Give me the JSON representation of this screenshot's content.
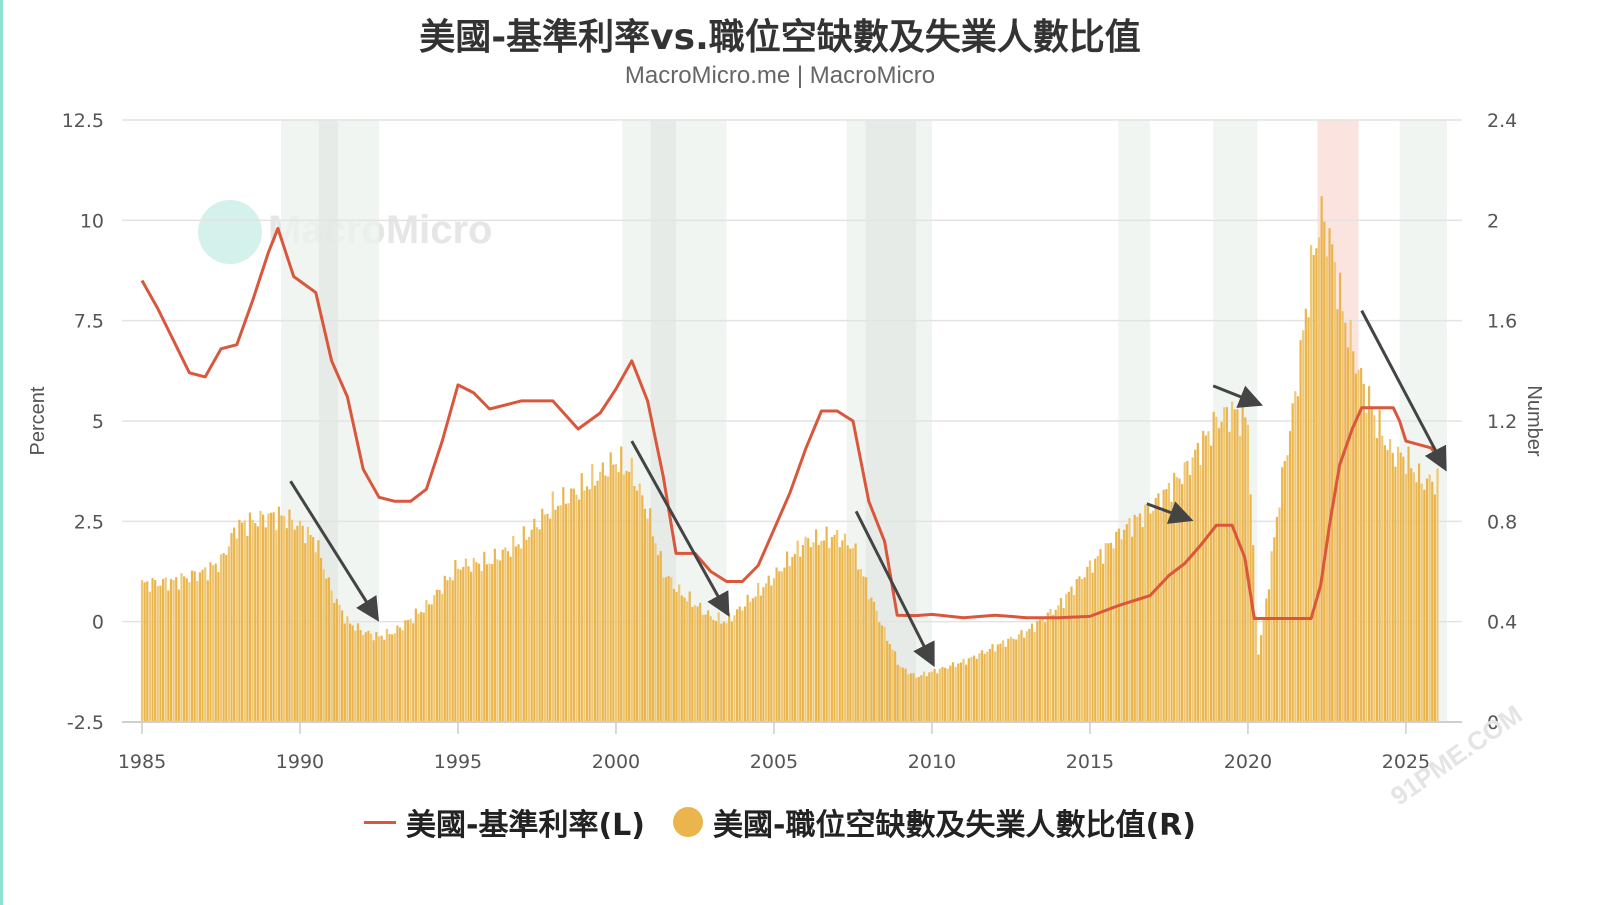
{
  "chart": {
    "title": "美國-基準利率vs.職位空缺數及失業人數比值",
    "subtitle": "MacroMicro.me | MacroMicro",
    "watermark": "MacroMicro",
    "corner_watermark": "91PME.COM",
    "left_axis_title": "Percent",
    "right_axis_title": "Number",
    "legend": [
      {
        "label": "美國-基準利率(L)",
        "color": "#d9573c",
        "symbol": "line"
      },
      {
        "label": "美國-職位空缺數及失業人數比值(R)",
        "color": "#ebb54d",
        "symbol": "circle"
      }
    ]
  },
  "chart_data": {
    "type": "line+bar",
    "title": "美國-基準利率vs.職位空缺數及失業人數比值",
    "subtitle": "MacroMicro.me | MacroMicro",
    "xlabel": "",
    "ylabel_left": "Percent",
    "ylabel_right": "Number",
    "ylim_left": [
      -2.5,
      12.5
    ],
    "ylim_right": [
      0,
      2.4
    ],
    "x_ticks": [
      "1985",
      "1990",
      "1995",
      "2000",
      "2005",
      "2010",
      "2015",
      "2020",
      "2025"
    ],
    "y_ticks_left": [
      "12.5",
      "10",
      "7.5",
      "5",
      "2.5",
      "0",
      "-2.5"
    ],
    "y_ticks_right": [
      "2.4",
      "2",
      "1.6",
      "1.2",
      "0.8",
      "0.4",
      "0"
    ],
    "grid": true,
    "legend_position": "bottom",
    "recession_shading": [
      [
        1989.4,
        1992.5
      ],
      [
        2000.2,
        2003.5
      ],
      [
        2007.3,
        2010.0
      ],
      [
        2015.9,
        2016.9
      ],
      [
        2018.9,
        2020.3
      ],
      [
        2024.8,
        2026.3
      ]
    ],
    "highlight_shading": [
      [
        2022.2,
        2023.5
      ]
    ],
    "series": [
      {
        "name": "美國-基準利率(L)",
        "axis": "left",
        "type": "line",
        "color": "#d9573c",
        "x": [
          1985.0,
          1985.5,
          1986.0,
          1986.5,
          1987.0,
          1987.5,
          1988.0,
          1988.5,
          1989.0,
          1989.3,
          1989.8,
          1990.5,
          1991.0,
          1991.5,
          1992.0,
          1992.5,
          1993.0,
          1993.5,
          1994.0,
          1994.5,
          1995.0,
          1995.5,
          1996.0,
          1997.0,
          1998.0,
          1998.8,
          1999.5,
          2000.0,
          2000.5,
          2001.0,
          2001.5,
          2001.9,
          2002.5,
          2003.0,
          2003.5,
          2004.0,
          2004.5,
          2005.0,
          2005.5,
          2006.0,
          2006.5,
          2007.0,
          2007.5,
          2008.0,
          2008.5,
          2008.9,
          2009.5,
          2010.0,
          2011.0,
          2012.0,
          2013.0,
          2014.0,
          2015.0,
          2015.9,
          2016.9,
          2017.5,
          2018.0,
          2018.5,
          2019.0,
          2019.5,
          2019.9,
          2020.2,
          2021.0,
          2022.0,
          2022.3,
          2022.6,
          2022.9,
          2023.3,
          2023.6,
          2024.6,
          2024.8,
          2025.0,
          2025.8,
          2026.0
        ],
        "values": [
          8.5,
          7.8,
          7.0,
          6.2,
          6.1,
          6.8,
          6.9,
          8.0,
          9.2,
          9.8,
          8.6,
          8.2,
          6.5,
          5.6,
          3.8,
          3.1,
          3.0,
          3.0,
          3.3,
          4.5,
          5.9,
          5.7,
          5.3,
          5.5,
          5.5,
          4.8,
          5.2,
          5.8,
          6.5,
          5.5,
          3.6,
          1.7,
          1.7,
          1.25,
          1.0,
          1.0,
          1.4,
          2.3,
          3.2,
          4.3,
          5.25,
          5.25,
          5.0,
          3.0,
          2.0,
          0.16,
          0.15,
          0.18,
          0.1,
          0.16,
          0.1,
          0.1,
          0.13,
          0.4,
          0.65,
          1.15,
          1.45,
          1.9,
          2.4,
          2.4,
          1.6,
          0.08,
          0.08,
          0.08,
          0.9,
          2.5,
          3.9,
          4.8,
          5.33,
          5.33,
          5.0,
          4.5,
          4.33,
          4.1
        ]
      },
      {
        "name": "美國-職位空缺數及失業人數比值(R)",
        "axis": "right",
        "type": "bar",
        "color": "#ebb54d",
        "x": [
          1985.0,
          1986.0,
          1987.0,
          1987.5,
          1988.0,
          1989.0,
          1989.5,
          1990.0,
          1990.5,
          1991.0,
          1991.5,
          1992.0,
          1992.5,
          1993.0,
          1994.0,
          1995.0,
          1996.0,
          1997.0,
          1998.0,
          1999.0,
          2000.0,
          2000.5,
          2001.0,
          2001.5,
          2002.0,
          2003.0,
          2003.5,
          2004.0,
          2005.0,
          2006.0,
          2007.0,
          2007.5,
          2008.0,
          2008.5,
          2009.0,
          2009.5,
          2010.0,
          2011.0,
          2012.0,
          2013.0,
          2014.0,
          2015.0,
          2016.0,
          2017.0,
          2018.0,
          2018.5,
          2019.0,
          2019.5,
          2020.0,
          2020.3,
          2020.5,
          2021.0,
          2021.5,
          2022.0,
          2022.3,
          2022.6,
          2023.0,
          2023.5,
          2024.0,
          2024.5,
          2025.0,
          2025.5,
          2026.0
        ],
        "values": [
          0.55,
          0.56,
          0.6,
          0.64,
          0.78,
          0.82,
          0.82,
          0.78,
          0.72,
          0.52,
          0.4,
          0.36,
          0.34,
          0.36,
          0.46,
          0.62,
          0.64,
          0.72,
          0.86,
          0.94,
          1.04,
          1.0,
          0.84,
          0.6,
          0.52,
          0.42,
          0.4,
          0.46,
          0.58,
          0.72,
          0.74,
          0.7,
          0.52,
          0.36,
          0.22,
          0.18,
          0.2,
          0.24,
          0.3,
          0.36,
          0.46,
          0.62,
          0.76,
          0.86,
          1.0,
          1.1,
          1.2,
          1.24,
          1.2,
          0.26,
          0.4,
          0.9,
          1.3,
          1.8,
          2.02,
          1.92,
          1.64,
          1.4,
          1.22,
          1.08,
          1.05,
          0.96,
          0.96
        ]
      }
    ],
    "annotations": [
      {
        "type": "arrow",
        "from": [
          1989.7,
          0.96
        ],
        "to": [
          1992.4,
          0.42
        ],
        "direction": "down"
      },
      {
        "type": "arrow",
        "from": [
          2000.5,
          1.12
        ],
        "to": [
          2003.5,
          0.44
        ],
        "direction": "down"
      },
      {
        "type": "arrow",
        "from": [
          2007.6,
          0.84
        ],
        "to": [
          2010.0,
          0.24
        ],
        "direction": "down"
      },
      {
        "type": "arrow",
        "from": [
          2016.8,
          0.87
        ],
        "to": [
          2018.1,
          0.81
        ],
        "direction": "up"
      },
      {
        "type": "arrow",
        "from": [
          2018.9,
          1.34
        ],
        "to": [
          2020.3,
          1.27
        ],
        "direction": "up"
      },
      {
        "type": "arrow",
        "from": [
          2023.6,
          1.64
        ],
        "to": [
          2026.2,
          1.02
        ],
        "direction": "down"
      }
    ]
  }
}
